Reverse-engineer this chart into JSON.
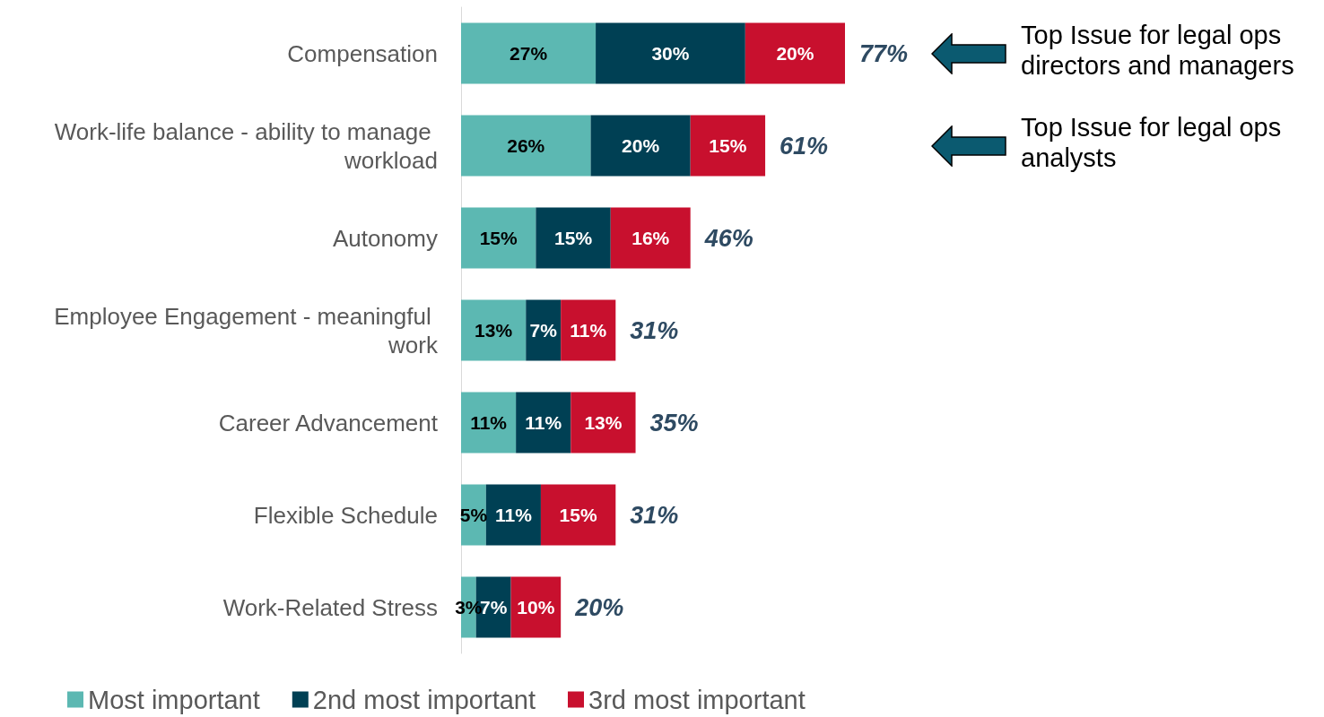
{
  "chart_data": {
    "type": "bar",
    "orientation": "horizontal",
    "stacked": true,
    "categories": [
      "Compensation",
      "Work-life balance - ability to manage workload",
      "Autonomy",
      "Employee Engagement - meaningful work",
      "Career Advancement",
      "Flexible Schedule",
      "Work-Related Stress"
    ],
    "series": [
      {
        "name": "Most important",
        "color": "#5cb8b2",
        "values": [
          27,
          26,
          15,
          13,
          11,
          5,
          3
        ],
        "value_labels": [
          "27%",
          "26%",
          "15%",
          "13%",
          "11%",
          "5%",
          "3%"
        ]
      },
      {
        "name": "2nd most important",
        "color": "#004054",
        "values": [
          30,
          20,
          15,
          7,
          11,
          11,
          7
        ],
        "value_labels": [
          "30%",
          "20%",
          "15%",
          "7%",
          "11%",
          "11%",
          "7%"
        ]
      },
      {
        "name": "3rd most important",
        "color": "#c8102e",
        "values": [
          20,
          15,
          16,
          11,
          13,
          15,
          10
        ],
        "value_labels": [
          "20%",
          "15%",
          "16%",
          "11%",
          "13%",
          "15%",
          "10%"
        ]
      }
    ],
    "totals": [
      "77%",
      "61%",
      "46%",
      "31%",
      "35%",
      "31%",
      "20%"
    ],
    "annotations": [
      "Top Issue for legal ops directors and managers",
      "Top Issue for legal ops analysts"
    ],
    "legend": "bottom"
  }
}
